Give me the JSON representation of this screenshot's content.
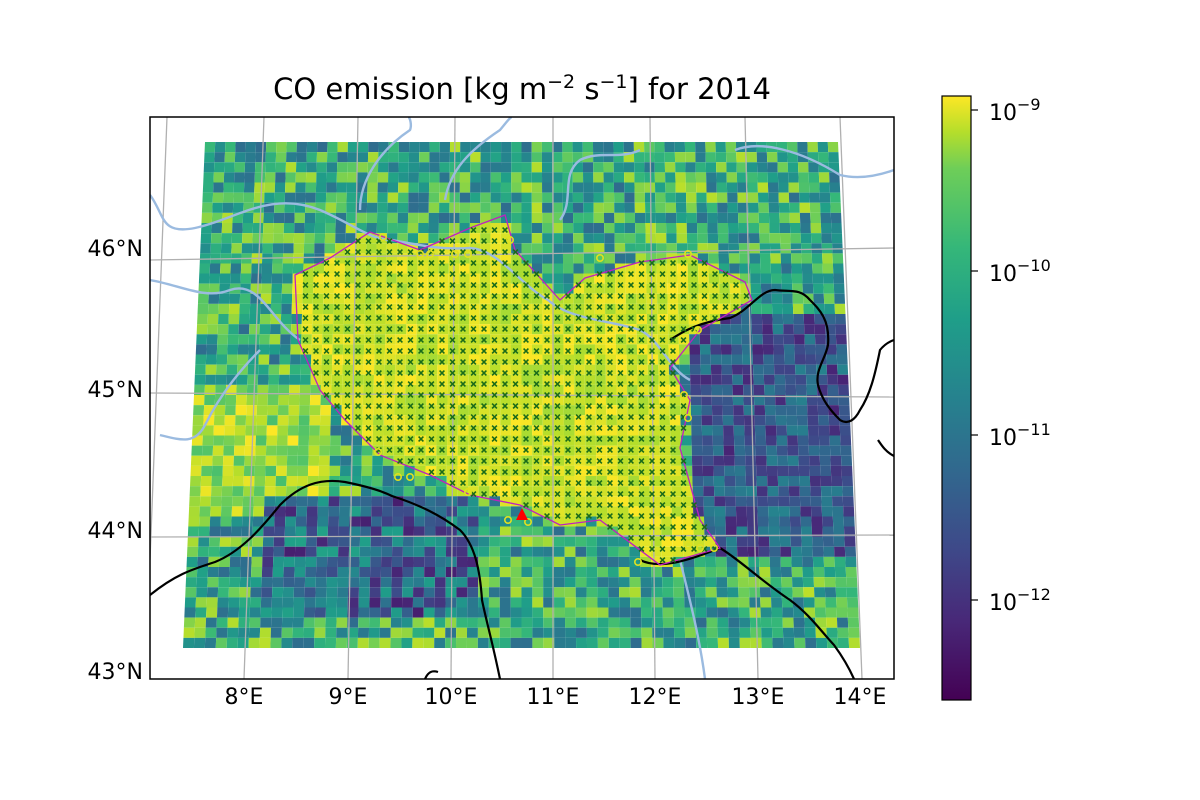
{
  "title": {
    "prefix": "CO emission [kg m",
    "exp1": "−2",
    "middle": " s",
    "exp2": "−1",
    "suffix": "] for 2014"
  },
  "map": {
    "lat_labels": [
      "46°N",
      "45°N",
      "44°N",
      "43°N"
    ],
    "lon_labels": [
      "8°E",
      "9°E",
      "10°E",
      "11°E",
      "12°E",
      "13°E",
      "14°E"
    ],
    "colors": {
      "river": "#9bbbe0",
      "coast": "#000000",
      "gridline": "#b0b0b0",
      "region_outline": "#c020c0",
      "marker_x": "#1a6b1a",
      "marker_circle": "#e0e020",
      "station": "#ff0000"
    }
  },
  "colorbar": {
    "scale": "log",
    "colormap": "viridis",
    "range": [
      3e-13,
      1.2e-09
    ],
    "tick_labels": [
      {
        "base": "10",
        "exp": "−9"
      },
      {
        "base": "10",
        "exp": "−10"
      },
      {
        "base": "10",
        "exp": "−11"
      },
      {
        "base": "10",
        "exp": "−12"
      }
    ]
  }
}
